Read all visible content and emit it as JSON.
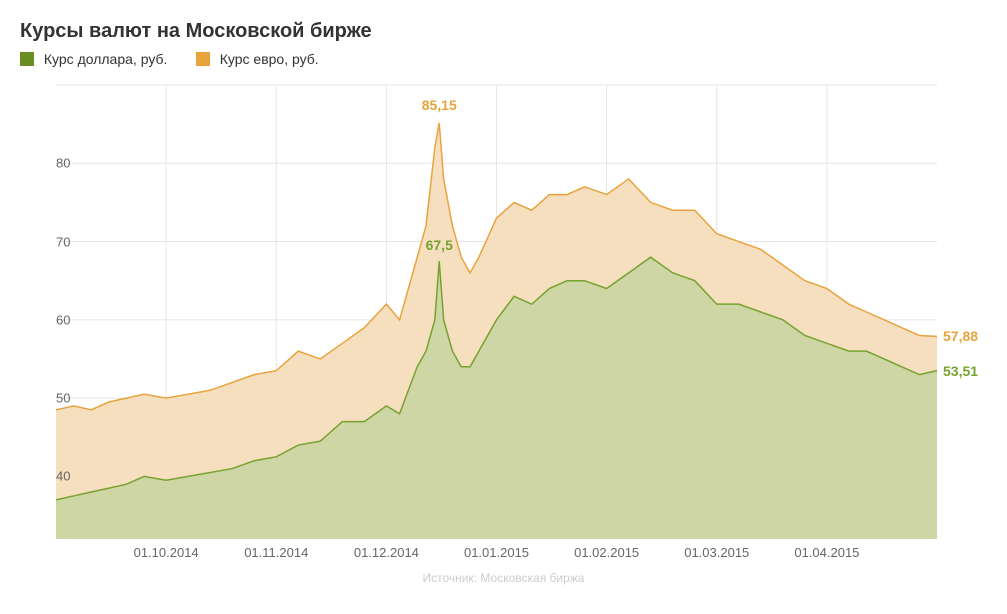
{
  "chart": {
    "type": "area",
    "title": "Курсы валют на Московской бирже",
    "source": "Источник: Московская биржа",
    "background_color": "#ffffff",
    "grid_color": "#e6e6e6",
    "axis_font_color": "#666666",
    "title_font_color": "#333333",
    "title_fontsize": 20,
    "legend_fontsize": 14,
    "axis_fontsize": 13,
    "ylim": [
      32,
      90
    ],
    "yticks": [
      40,
      50,
      60,
      70,
      80
    ],
    "xticks": [
      "01.10.2014",
      "01.11.2014",
      "01.12.2014",
      "01.01.2015",
      "01.02.2015",
      "01.03.2015",
      "01.04.2015"
    ],
    "xtick_positions": [
      0.125,
      0.25,
      0.375,
      0.5,
      0.625,
      0.75,
      0.875
    ],
    "legend": [
      {
        "label": "Курс доллара, руб.",
        "color": "#6b8e23"
      },
      {
        "label": "Курс евро, руб.",
        "color": "#e8a33d"
      }
    ],
    "series": [
      {
        "name": "euro",
        "line_color": "#e8a33d",
        "fill_color": "#f5dfbf",
        "line_width": 1.5,
        "x": [
          0,
          0.02,
          0.04,
          0.06,
          0.08,
          0.1,
          0.125,
          0.15,
          0.175,
          0.2,
          0.225,
          0.25,
          0.275,
          0.3,
          0.325,
          0.35,
          0.375,
          0.39,
          0.4,
          0.41,
          0.42,
          0.43,
          0.435,
          0.44,
          0.45,
          0.46,
          0.47,
          0.48,
          0.5,
          0.52,
          0.54,
          0.56,
          0.58,
          0.6,
          0.625,
          0.65,
          0.675,
          0.7,
          0.725,
          0.75,
          0.775,
          0.8,
          0.825,
          0.85,
          0.875,
          0.9,
          0.92,
          0.94,
          0.96,
          0.98,
          1.0
        ],
        "y": [
          48.5,
          49,
          48.5,
          49.5,
          50,
          50.5,
          50,
          50.5,
          51,
          52,
          53,
          53.5,
          56,
          55,
          57,
          59,
          62,
          60,
          64,
          68,
          72,
          82,
          85.15,
          78,
          72,
          68,
          66,
          68,
          73,
          75,
          74,
          76,
          76,
          77,
          76,
          78,
          75,
          74,
          74,
          71,
          70,
          69,
          67,
          65,
          64,
          62,
          61,
          60,
          59,
          58,
          57.88
        ],
        "peak_label": {
          "value": "85,15",
          "x": 0.435,
          "y": 85.15,
          "color": "#e8a33d",
          "dy": -10
        },
        "end_label": {
          "value": "57,88",
          "x": 1.0,
          "y": 57.88,
          "color": "#e8a33d"
        }
      },
      {
        "name": "dollar",
        "line_color": "#78a22f",
        "fill_color": "#cdd6a4",
        "line_width": 1.5,
        "x": [
          0,
          0.02,
          0.04,
          0.06,
          0.08,
          0.1,
          0.125,
          0.15,
          0.175,
          0.2,
          0.225,
          0.25,
          0.275,
          0.3,
          0.325,
          0.35,
          0.375,
          0.39,
          0.4,
          0.41,
          0.42,
          0.43,
          0.435,
          0.44,
          0.45,
          0.46,
          0.47,
          0.48,
          0.5,
          0.52,
          0.54,
          0.56,
          0.58,
          0.6,
          0.625,
          0.65,
          0.675,
          0.7,
          0.725,
          0.75,
          0.775,
          0.8,
          0.825,
          0.85,
          0.875,
          0.9,
          0.92,
          0.94,
          0.96,
          0.98,
          1.0
        ],
        "y": [
          37,
          37.5,
          38,
          38.5,
          39,
          40,
          39.5,
          40,
          40.5,
          41,
          42,
          42.5,
          44,
          44.5,
          47,
          47,
          49,
          48,
          51,
          54,
          56,
          60,
          67.5,
          60,
          56,
          54,
          54,
          56,
          60,
          63,
          62,
          64,
          65,
          65,
          64,
          66,
          68,
          66,
          65,
          62,
          62,
          61,
          60,
          58,
          57,
          56,
          56,
          55,
          54,
          53,
          53.51
        ],
        "peak_label": {
          "value": "67,5",
          "x": 0.435,
          "y": 67.5,
          "color": "#78a22f",
          "dy": -8
        },
        "end_label": {
          "value": "53,51",
          "x": 1.0,
          "y": 53.51,
          "color": "#78a22f"
        }
      }
    ]
  }
}
